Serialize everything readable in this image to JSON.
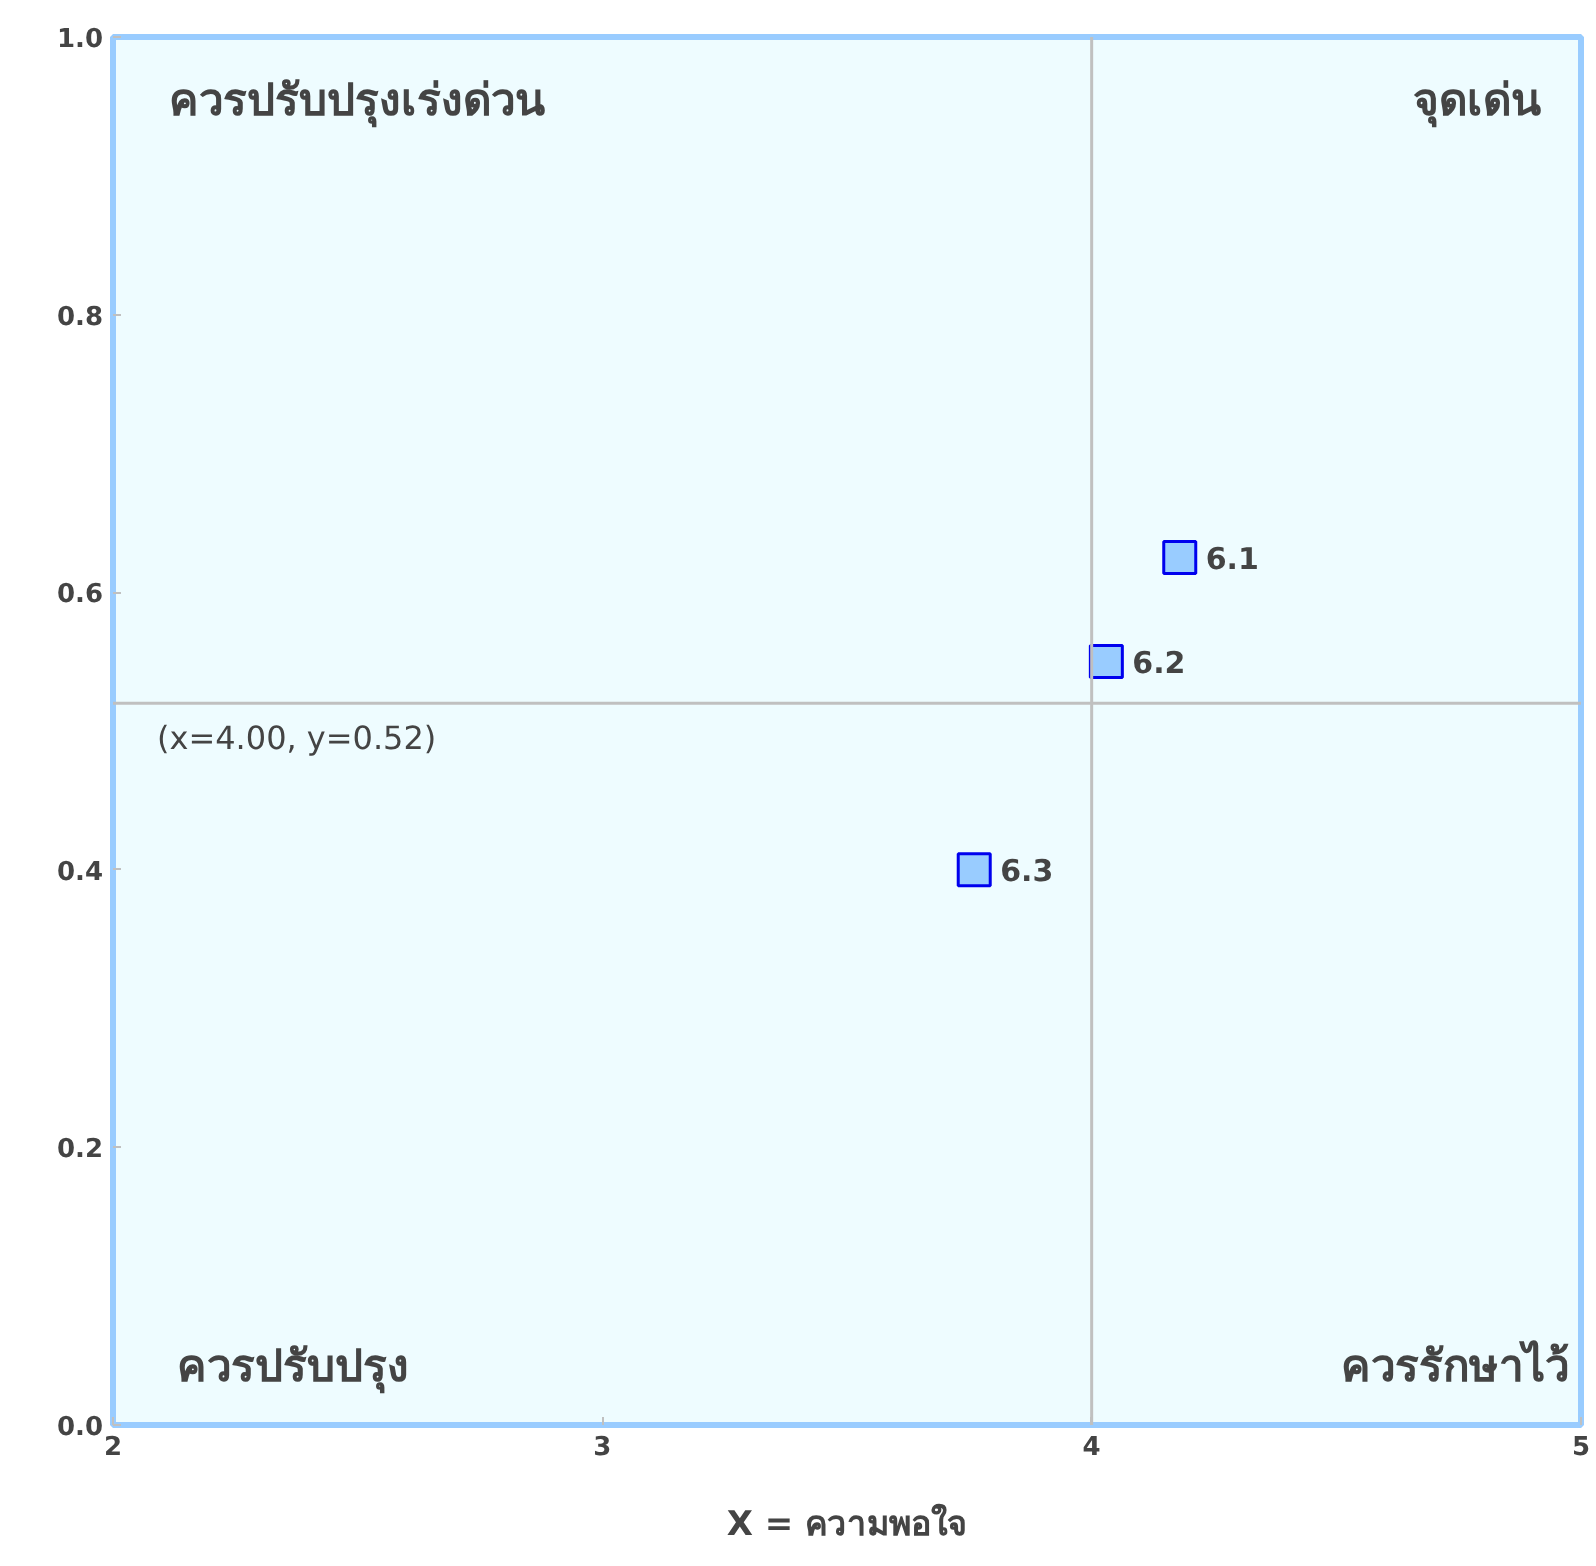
{
  "chart_data": {
    "type": "scatter",
    "xlabel": "X = ความพอใจ",
    "x": [
      4.18,
      4.03,
      3.76
    ],
    "series": [
      {
        "color": "#99ccff",
        "values": [
          0.625,
          0.55,
          0.4
        ]
      }
    ],
    "marker": "square",
    "grid": false,
    "xlim": [
      2,
      5
    ],
    "xticks": [
      2,
      3,
      4,
      5
    ],
    "ylim": [
      0,
      1
    ],
    "yticks": [
      {
        "value": 0,
        "label": "0.0"
      },
      {
        "value": 0.2,
        "label": "0.2"
      },
      {
        "value": 0.4,
        "label": "0.4"
      },
      {
        "value": 0.6,
        "label": "0.6"
      },
      {
        "value": 0.8,
        "label": "0.8"
      },
      {
        "value": 1,
        "label": "1.0"
      }
    ],
    "ref_lines": [
      {
        "axis": "x",
        "value": 4,
        "color": "#c0c0c0"
      },
      {
        "axis": "y",
        "value": 0.52,
        "color": "#c0c0c0"
      }
    ],
    "annotations": [
      "ควรปรับปรุงเร่งด่วน",
      "จุดเด่น",
      "ควรปรับปรุง",
      "ควรรักษาไว้",
      "(x=4.00, y=0.52)",
      {
        "text": "6.1",
        "x": 4.18,
        "y": 0.625
      },
      {
        "text": "6.2",
        "x": 4.03,
        "y": 0.55
      },
      {
        "text": "6.3",
        "x": 3.76,
        "y": 0.4
      }
    ]
  }
}
